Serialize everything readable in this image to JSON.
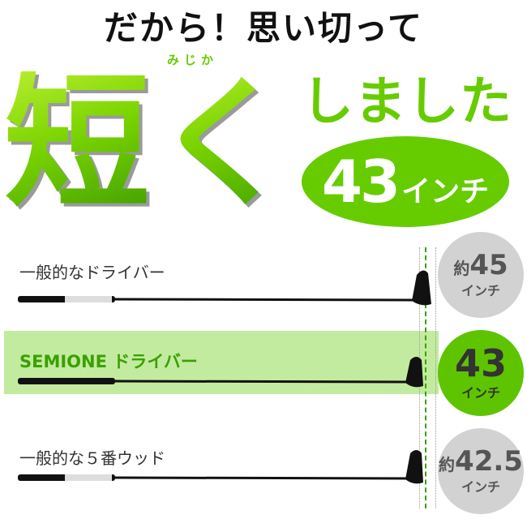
{
  "headline": "だから！思い切って",
  "big_kanji": "短",
  "big_ku": "く",
  "ruby": "みじか",
  "shimashita": "しました",
  "badge": {
    "number": "43",
    "unit": "インチ"
  },
  "rows": [
    {
      "label": "一般的なドライバー",
      "prefix": "約",
      "length": "45",
      "unit": "インチ"
    },
    {
      "label": "SEMIONE ドライバー",
      "prefix": "",
      "length": "43",
      "unit": "インチ"
    },
    {
      "label": "一般的な５番ウッド",
      "prefix": "約",
      "length": "42.5",
      "unit": "インチ"
    }
  ],
  "colors": {
    "accent": "#66cc00",
    "band": "#c3eba0",
    "gray": "#d2d2d2"
  }
}
